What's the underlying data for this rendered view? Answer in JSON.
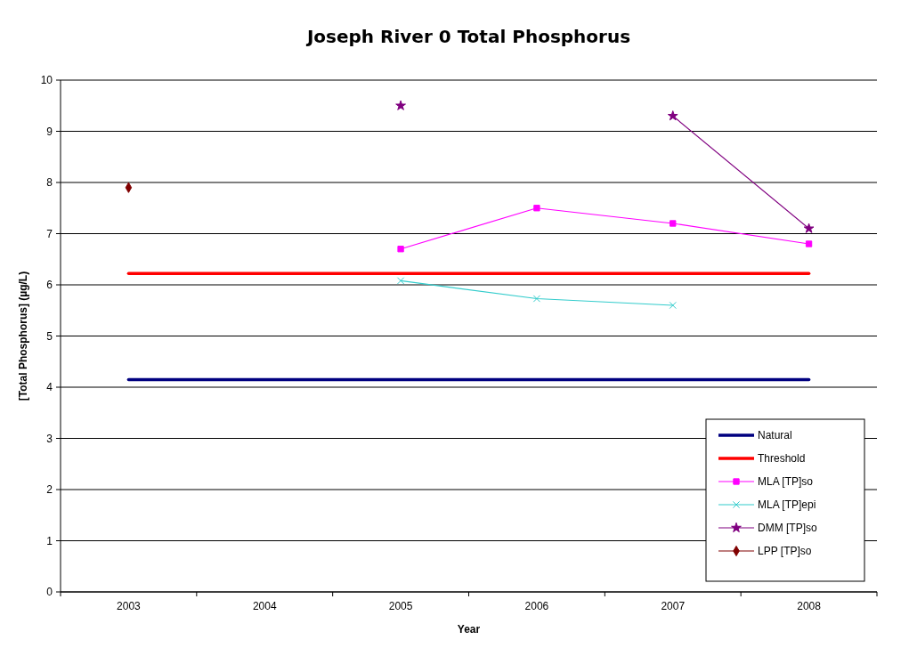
{
  "chart_data": {
    "type": "line",
    "title": "Joseph River 0 Total Phosphorus",
    "xlabel": "Year",
    "ylabel": "[Total Phosphorus] (µg/L)",
    "categories": [
      "2003",
      "2004",
      "2005",
      "2006",
      "2007",
      "2008"
    ],
    "series": [
      {
        "name": "Natural",
        "color": "#000080",
        "marker": "none",
        "values": [
          4.15,
          4.15,
          4.15,
          4.15,
          4.15,
          4.15
        ]
      },
      {
        "name": "Threshold",
        "color": "#ff0000",
        "marker": "none",
        "values": [
          6.22,
          6.22,
          6.22,
          6.22,
          6.22,
          6.22
        ]
      },
      {
        "name": "MLA [TP]so",
        "color": "#ff00ff",
        "marker": "square",
        "values": [
          null,
          null,
          6.7,
          7.5,
          7.2,
          6.8
        ]
      },
      {
        "name": "MLA [TP]epi",
        "color": "#33cccc",
        "marker": "cross",
        "values": [
          null,
          null,
          6.08,
          5.73,
          5.6,
          null
        ]
      },
      {
        "name": "DMM [TP]so",
        "color": "#800080",
        "marker": "star",
        "values": [
          null,
          null,
          9.5,
          null,
          9.3,
          7.1
        ]
      },
      {
        "name": "LPP [TP]so",
        "color": "#800000",
        "marker": "diamond",
        "values": [
          7.9,
          null,
          null,
          null,
          null,
          null
        ]
      }
    ],
    "ylim": [
      0,
      10
    ],
    "yticks": [
      0,
      1,
      2,
      3,
      4,
      5,
      6,
      7,
      8,
      9,
      10
    ],
    "grid": "y",
    "legend": "bottom right"
  }
}
